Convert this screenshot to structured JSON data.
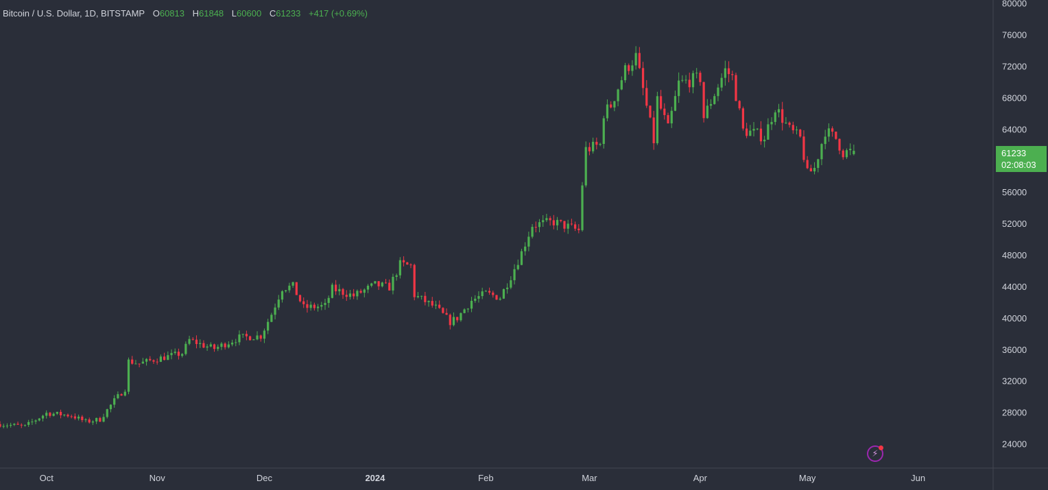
{
  "legend": {
    "symbol": "Bitcoin / U.S. Dollar, 1D, BITSTAMP",
    "open_key": "O",
    "open": "60813",
    "high_key": "H",
    "high": "61848",
    "low_key": "L",
    "low": "60600",
    "close_key": "C",
    "close": "61233",
    "change": "+417 (+0.69%)"
  },
  "last_price": {
    "price": "61233",
    "countdown": "02:08:03"
  },
  "colors": {
    "background": "#2a2e39",
    "up": "#4caf50",
    "down": "#f23645",
    "text": "#d1d4dc"
  },
  "icons": {
    "bolt": "lightning-bolt-icon"
  },
  "chart_data": {
    "type": "candlestick",
    "title": "",
    "xlabel": "",
    "ylabel": "",
    "ylim": [
      21000,
      80400
    ],
    "yticks": [
      24000,
      28000,
      32000,
      36000,
      40000,
      44000,
      48000,
      52000,
      56000,
      60000,
      64000,
      68000,
      72000,
      76000,
      80000
    ],
    "ytick_labels": [
      "24000",
      "28000",
      "32000",
      "36000",
      "40000",
      "44000",
      "48000",
      "52000",
      "56000",
      "",
      "64000",
      "68000",
      "72000",
      "76000",
      "80000"
    ],
    "xlim": [
      "2023-09-18",
      "2024-06-22"
    ],
    "xticks": [
      {
        "date": "2023-10-01",
        "label": "Oct",
        "bold": false
      },
      {
        "date": "2023-11-01",
        "label": "Nov",
        "bold": false
      },
      {
        "date": "2023-12-01",
        "label": "Dec",
        "bold": false
      },
      {
        "date": "2024-01-01",
        "label": "2024",
        "bold": true
      },
      {
        "date": "2024-02-01",
        "label": "Feb",
        "bold": false
      },
      {
        "date": "2024-03-01",
        "label": "Mar",
        "bold": false
      },
      {
        "date": "2024-04-01",
        "label": "Apr",
        "bold": false
      },
      {
        "date": "2024-05-01",
        "label": "May",
        "bold": false
      },
      {
        "date": "2024-06-01",
        "label": "Jun",
        "bold": false
      }
    ],
    "grid": false,
    "legend_position": "top-left",
    "path_points": [
      [
        "2023-09-18",
        26500
      ],
      [
        "2023-09-25",
        26200
      ],
      [
        "2023-10-01",
        27900
      ],
      [
        "2023-10-08",
        27600
      ],
      [
        "2023-10-12",
        26800
      ],
      [
        "2023-10-16",
        27100
      ],
      [
        "2023-10-20",
        29500
      ],
      [
        "2023-10-23",
        31000
      ],
      [
        "2023-10-24",
        34500
      ],
      [
        "2023-10-27",
        34200
      ],
      [
        "2023-11-01",
        34800
      ],
      [
        "2023-11-08",
        35500
      ],
      [
        "2023-11-10",
        37200
      ],
      [
        "2023-11-14",
        36500
      ],
      [
        "2023-11-17",
        36100
      ],
      [
        "2023-11-24",
        37500
      ],
      [
        "2023-11-30",
        37700
      ],
      [
        "2023-12-03",
        40500
      ],
      [
        "2023-12-06",
        43800
      ],
      [
        "2023-12-09",
        44000
      ],
      [
        "2023-12-12",
        41300
      ],
      [
        "2023-12-18",
        41500
      ],
      [
        "2023-12-20",
        43700
      ],
      [
        "2023-12-26",
        42800
      ],
      [
        "2024-01-01",
        44200
      ],
      [
        "2024-01-05",
        43900
      ],
      [
        "2024-01-08",
        46800
      ],
      [
        "2024-01-11",
        46600
      ],
      [
        "2024-01-12",
        42900
      ],
      [
        "2024-01-18",
        41300
      ],
      [
        "2024-01-22",
        39500
      ],
      [
        "2024-01-24",
        40000
      ],
      [
        "2024-01-28",
        42200
      ],
      [
        "2024-02-01",
        43100
      ],
      [
        "2024-02-05",
        42600
      ],
      [
        "2024-02-08",
        45300
      ],
      [
        "2024-02-11",
        48300
      ],
      [
        "2024-02-14",
        51800
      ],
      [
        "2024-02-20",
        52200
      ],
      [
        "2024-02-27",
        51100
      ],
      [
        "2024-02-28",
        57000
      ],
      [
        "2024-02-29",
        61400
      ],
      [
        "2024-03-04",
        62000
      ],
      [
        "2024-03-05",
        66000
      ],
      [
        "2024-03-07",
        67000
      ],
      [
        "2024-03-11",
        71500
      ],
      [
        "2024-03-14",
        73200
      ],
      [
        "2024-03-16",
        69000
      ],
      [
        "2024-03-19",
        62500
      ],
      [
        "2024-03-20",
        67800
      ],
      [
        "2024-03-23",
        64000
      ],
      [
        "2024-03-26",
        69800
      ],
      [
        "2024-04-01",
        70500
      ],
      [
        "2024-04-02",
        65500
      ],
      [
        "2024-04-08",
        71500
      ],
      [
        "2024-04-10",
        70600
      ],
      [
        "2024-04-13",
        63800
      ],
      [
        "2024-04-16",
        63500
      ],
      [
        "2024-04-19",
        63000
      ],
      [
        "2024-04-22",
        66800
      ],
      [
        "2024-04-26",
        63900
      ],
      [
        "2024-04-29",
        62800
      ],
      [
        "2024-05-01",
        58300
      ],
      [
        "2024-05-03",
        59000
      ],
      [
        "2024-05-06",
        63800
      ],
      [
        "2024-05-09",
        62800
      ],
      [
        "2024-05-11",
        61000
      ],
      [
        "2024-05-14",
        61233
      ]
    ]
  }
}
